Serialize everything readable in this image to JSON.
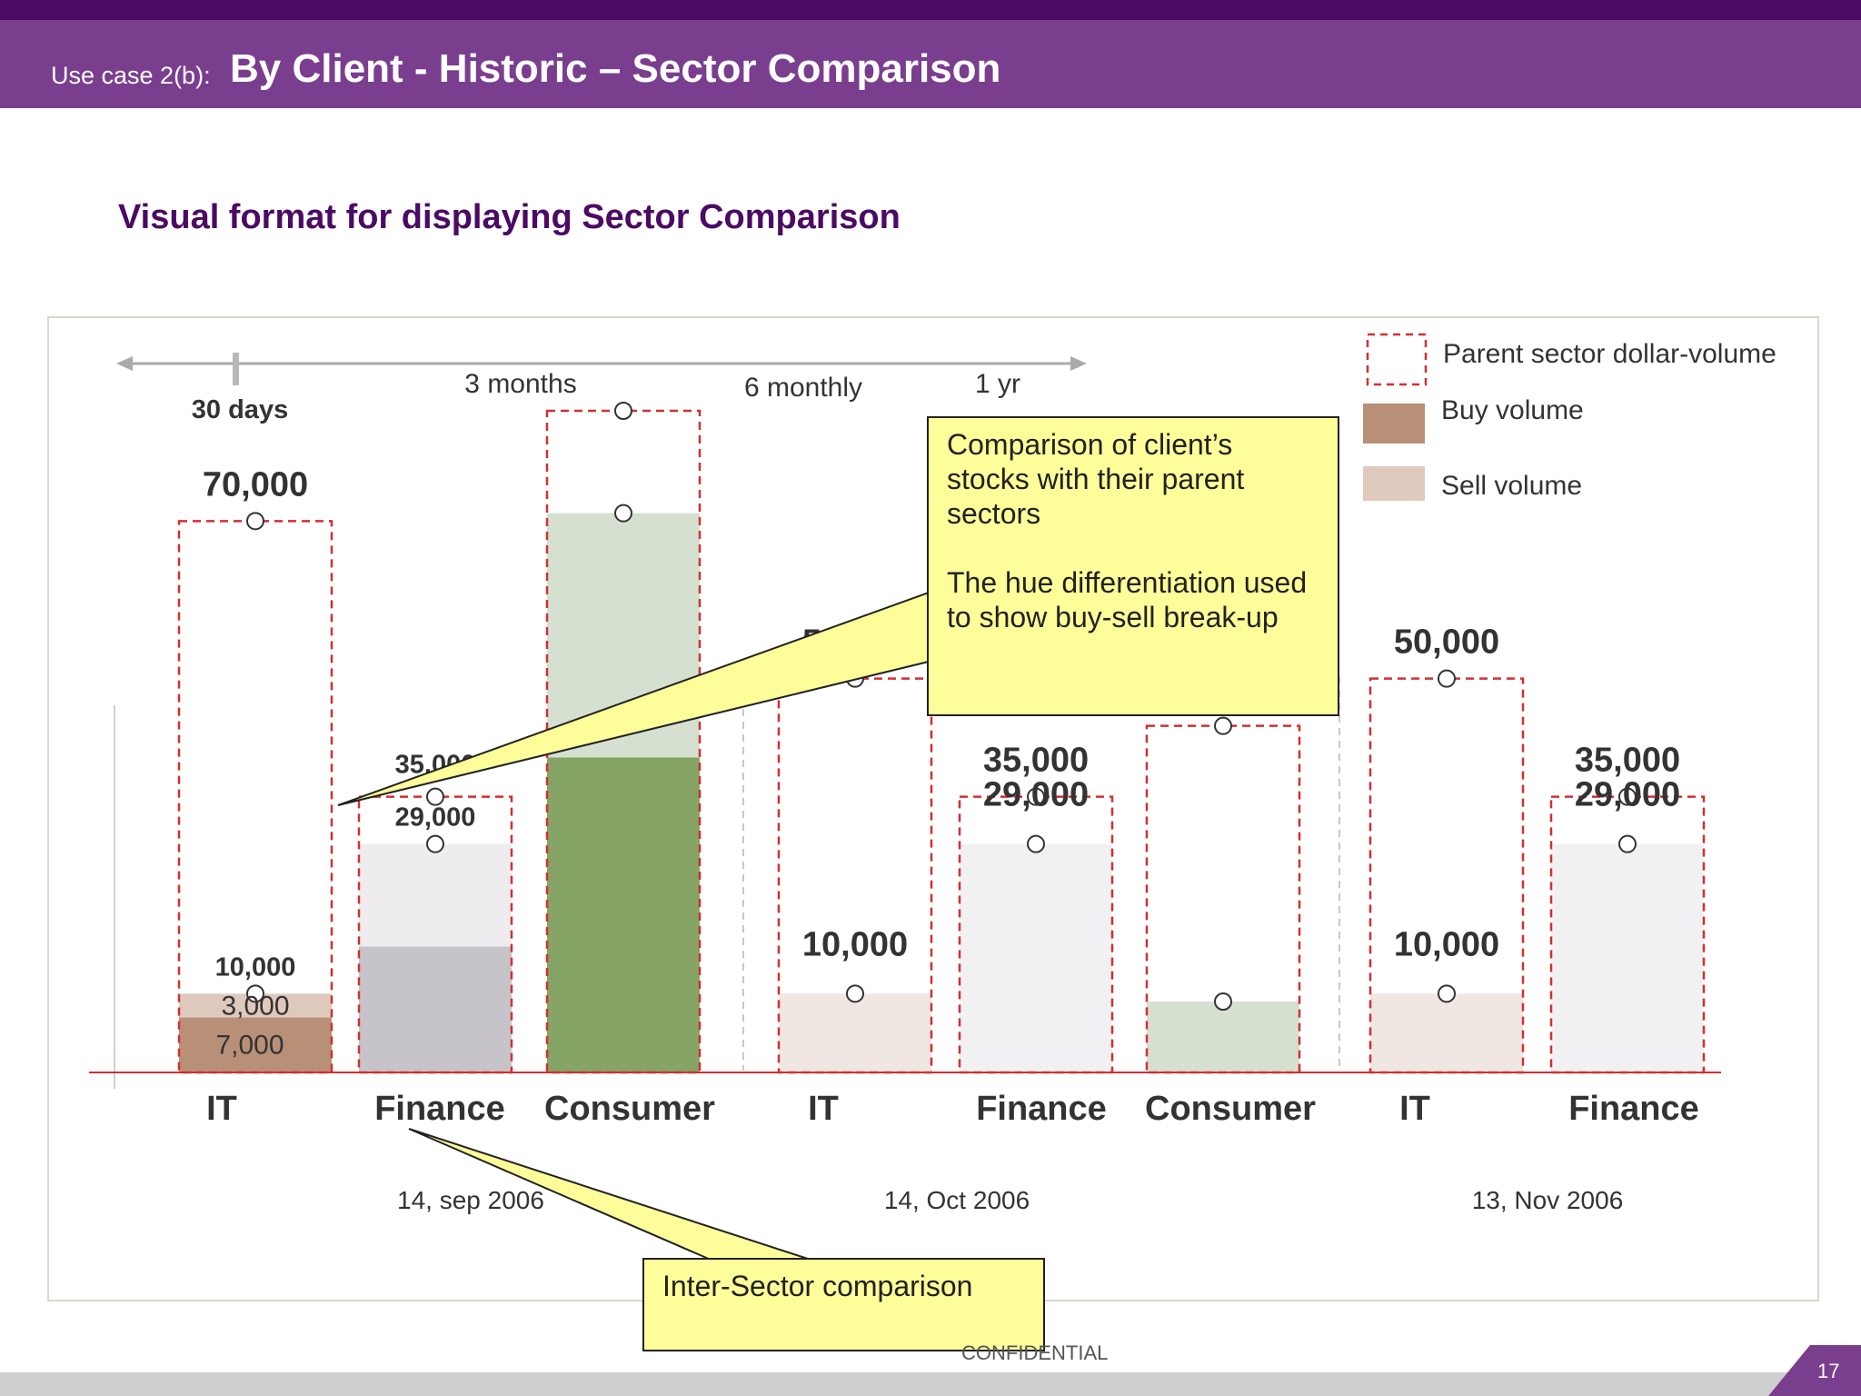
{
  "header": {
    "prefix": "Use case 2(b):",
    "title": "By Client - Historic – Sector Comparison"
  },
  "subtitle": "Visual  format for displaying Sector Comparison",
  "timeline": {
    "labels": [
      "30 days",
      "3 months",
      "6 monthly",
      "1 yr"
    ],
    "selected": "30 days"
  },
  "legend": [
    {
      "label": "Parent sector dollar-volume",
      "style": "dashed-box",
      "color": "#d03030"
    },
    {
      "label": "Buy volume",
      "style": "swatch",
      "color": "#b89078"
    },
    {
      "label": "Sell volume",
      "style": "swatch",
      "color": "#dfc9bd"
    }
  ],
  "annotations": {
    "callout_text": "Comparison of client’s stocks with their parent sectors",
    "callout_text2": "The hue differentiation used to show buy-sell break-up",
    "inter_sector": "Inter-Sector comparison"
  },
  "footer": {
    "confidential": "CONFIDENTIAL",
    "page": "17"
  },
  "chart_data": {
    "type": "bar",
    "groups": [
      {
        "date": "14, sep 2006",
        "bars": [
          {
            "category": "IT",
            "parent": 70000,
            "parent_label": "70,000",
            "client": 10000,
            "client_label": "10,000",
            "buy": 7000,
            "buy_label": "7,000",
            "sell": 3000,
            "sell_label": "3,000",
            "colors": {
              "buy": "#b89078",
              "sell": "#dfc9bd"
            }
          },
          {
            "category": "Finance",
            "parent": 35000,
            "parent_label": "35,000",
            "client": 29000,
            "client_label": "29,000",
            "buy": 16000,
            "sell": 13000,
            "colors": {
              "buy": "#c6c4c8",
              "sell": "#eeecef"
            }
          },
          {
            "category": "Consumer",
            "parent": 84000,
            "client": 71000,
            "buy": 40000,
            "sell": 31000,
            "colors": {
              "buy": "#85a465",
              "sell": "#d6e0d0"
            }
          }
        ]
      },
      {
        "date": "14, Oct 2006",
        "bars": [
          {
            "category": "IT",
            "parent": 50000,
            "parent_label": "50,000",
            "client": 10000,
            "client_label": "10,000",
            "sell": 10000,
            "colors": {
              "sell": "#f0e6e2"
            }
          },
          {
            "category": "Finance",
            "parent": 35000,
            "parent_label": "35,000",
            "client": 29000,
            "client_label": "29,000",
            "sell": 29000,
            "colors": {
              "sell": "#f1f1f3"
            }
          },
          {
            "category": "Consumer",
            "parent": 44000,
            "client": 9000,
            "sell": 9000,
            "colors": {
              "sell": "#d6e0d0"
            }
          }
        ]
      },
      {
        "date": "13, Nov 2006",
        "bars": [
          {
            "category": "IT",
            "parent": 50000,
            "parent_label": "50,000",
            "client": 10000,
            "client_label": "10,000",
            "sell": 10000,
            "colors": {
              "sell": "#f0e6e2"
            }
          },
          {
            "category": "Finance",
            "parent": 35000,
            "parent_label": "35,000",
            "client": 29000,
            "client_label": "29,000",
            "sell": 29000,
            "colors": {
              "sell": "#f1f1f3"
            }
          }
        ]
      }
    ],
    "ylim": [
      0,
      90000
    ],
    "grid": false
  }
}
